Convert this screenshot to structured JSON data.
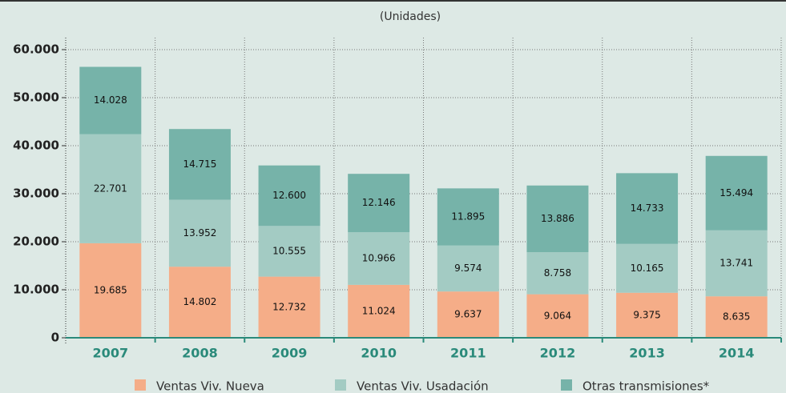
{
  "chart_data": {
    "type": "stacked_bar",
    "subtitle": "(Unidades)",
    "categories": [
      "2007",
      "2008",
      "2009",
      "2010",
      "2011",
      "2012",
      "2013",
      "2014"
    ],
    "series": [
      {
        "name": "Ventas Viv. Nueva",
        "color": "#f5ad88",
        "values": [
          19685,
          14802,
          12732,
          11024,
          9637,
          9064,
          9375,
          8635
        ],
        "value_labels": [
          "19.685",
          "14.802",
          "12.732",
          "11.024",
          "9.637",
          "9.064",
          "9.375",
          "8.635"
        ]
      },
      {
        "name": "Ventas Viv. Usadación",
        "color": "#a3cbc3",
        "values": [
          22701,
          13952,
          10555,
          10966,
          9574,
          8758,
          10165,
          13741
        ],
        "value_labels": [
          "22.701",
          "13.952",
          "10.555",
          "10.966",
          "9.574",
          "8.758",
          "10.165",
          "13.741"
        ]
      },
      {
        "name": "Otras transmisiones*",
        "color": "#76b3a9",
        "values": [
          14028,
          14715,
          12600,
          12146,
          11895,
          13886,
          14733,
          15494
        ],
        "value_labels": [
          "14.028",
          "14.715",
          "12.600",
          "12.146",
          "11.895",
          "13.886",
          "14.733",
          "15.494"
        ]
      }
    ],
    "ylim": [
      0,
      60000
    ],
    "yticks": [
      0,
      {
        "value": 10000,
        "label": "10.000"
      },
      {
        "value": 20000,
        "label": "20.000"
      },
      {
        "value": 30000,
        "label": "30.000"
      },
      {
        "value": 40000,
        "label": "40.000"
      },
      {
        "value": 50000,
        "label": "50.000"
      },
      {
        "value": 60000,
        "label": "60.000"
      }
    ],
    "grid": true
  }
}
